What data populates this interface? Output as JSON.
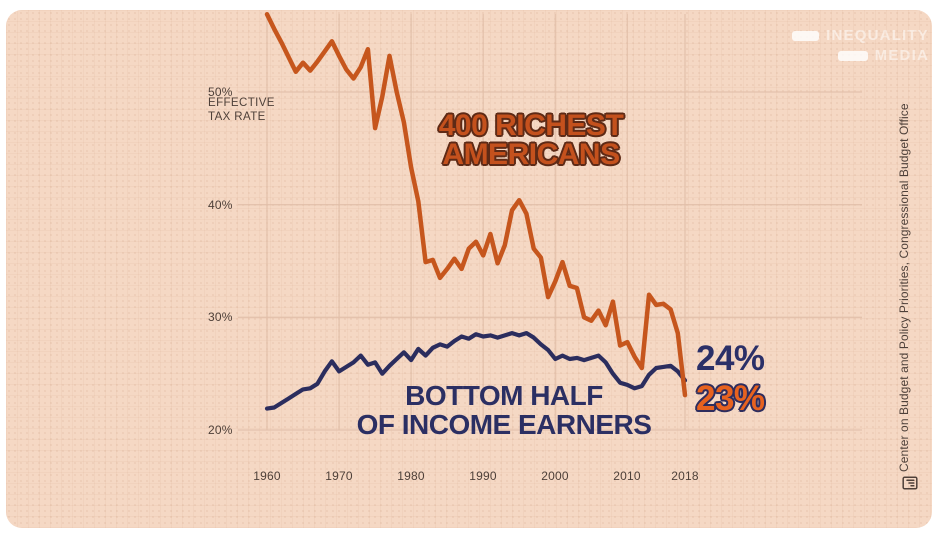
{
  "page": {
    "background": "#ffffff",
    "card_background": "#f5d8c4",
    "grid_color": "#e2bfa9"
  },
  "logo": {
    "line1": "INEQUALITY",
    "line2": "MEDIA"
  },
  "attribution": {
    "source_text": "Center on Budget and Policy Priorities, Congressional Budget Office",
    "icon": "document-chart-icon"
  },
  "colors": {
    "richest_line": "#c6561d",
    "bottom_line": "#2b2d5e",
    "richest_label_fill": "#c4511d",
    "richest_label_outline": "#5e2a16",
    "bottom_label_text": "#2b2f63",
    "end_value_bottom_text": "#2b3068",
    "end_value_richest_fill": "#e7621f",
    "end_value_richest_outline": "#2e2d5e",
    "tick_text": "#4e4039"
  },
  "chart_data": {
    "type": "line",
    "title": "",
    "legend": "none",
    "grid": "on",
    "x_axis": {
      "range": [
        1960,
        2018
      ],
      "ticks": [
        {
          "label": "1960",
          "value": 1960
        },
        {
          "label": "1970",
          "value": 1970
        },
        {
          "label": "1980",
          "value": 1980
        },
        {
          "label": "1990",
          "value": 1990
        },
        {
          "label": "2000",
          "value": 2000
        },
        {
          "label": "2010",
          "value": 2010
        },
        {
          "label": "2018",
          "value": 2018
        }
      ]
    },
    "y_axis": {
      "unit": "percent effective tax rate",
      "range_displayed": [
        20,
        50
      ],
      "header_lines": [
        "EFFECTIVE",
        "TAX RATE"
      ],
      "ticks": [
        {
          "label": "50%",
          "value": 50
        },
        {
          "label": "40%",
          "value": 40
        },
        {
          "label": "30%",
          "value": 30
        },
        {
          "label": "20%",
          "value": 20
        }
      ],
      "gridline_values": [
        50,
        40,
        30,
        20
      ]
    },
    "series": [
      {
        "name": "400 Richest Americans",
        "color": "#c6561d",
        "stroke_width": 4.5,
        "start_year": 1960,
        "end_year": 2018,
        "end_label": "23%",
        "values": [
          56.9,
          55.6,
          54.4,
          53.1,
          51.8,
          52.6,
          51.9,
          52.7,
          53.6,
          54.5,
          53.2,
          52.0,
          51.2,
          52.2,
          53.8,
          46.8,
          49.6,
          53.2,
          50.0,
          47.3,
          43.3,
          40.3,
          34.9,
          35.1,
          33.5,
          34.3,
          35.2,
          34.3,
          36.1,
          36.7,
          35.5,
          37.4,
          34.8,
          36.4,
          39.5,
          40.4,
          39.2,
          36.1,
          35.3,
          31.8,
          33.2,
          34.9,
          32.8,
          32.6,
          30.0,
          29.7,
          30.6,
          29.3,
          31.4,
          27.5,
          27.8,
          26.5,
          25.5,
          32.0,
          31.1,
          31.2,
          30.7,
          28.6,
          23.1
        ]
      },
      {
        "name": "Bottom Half of Income Earners",
        "color": "#2b2d5e",
        "stroke_width": 4.2,
        "start_year": 1960,
        "end_year": 2018,
        "end_label": "24%",
        "values": [
          21.9,
          22.0,
          22.4,
          22.8,
          23.2,
          23.6,
          23.7,
          24.1,
          25.2,
          26.1,
          25.2,
          25.6,
          26.0,
          26.6,
          25.8,
          26.0,
          25.0,
          25.7,
          26.3,
          26.9,
          26.2,
          27.2,
          26.6,
          27.3,
          27.6,
          27.4,
          27.9,
          28.3,
          28.1,
          28.5,
          28.3,
          28.4,
          28.2,
          28.4,
          28.6,
          28.4,
          28.6,
          28.2,
          27.6,
          27.1,
          26.3,
          26.6,
          26.3,
          26.4,
          26.2,
          26.4,
          26.6,
          26.0,
          25.0,
          24.2,
          24.0,
          23.7,
          23.9,
          24.9,
          25.5,
          25.6,
          25.7,
          25.2,
          24.4
        ]
      }
    ],
    "annotations": {
      "richest_label": {
        "lines": [
          "400 RICHEST",
          "AMERICANS"
        ]
      },
      "bottom_label": {
        "lines": [
          "BOTTOM HALF",
          "OF INCOME EARNERS"
        ]
      },
      "end_value_bottom": "24%",
      "end_value_richest": "23%"
    }
  }
}
